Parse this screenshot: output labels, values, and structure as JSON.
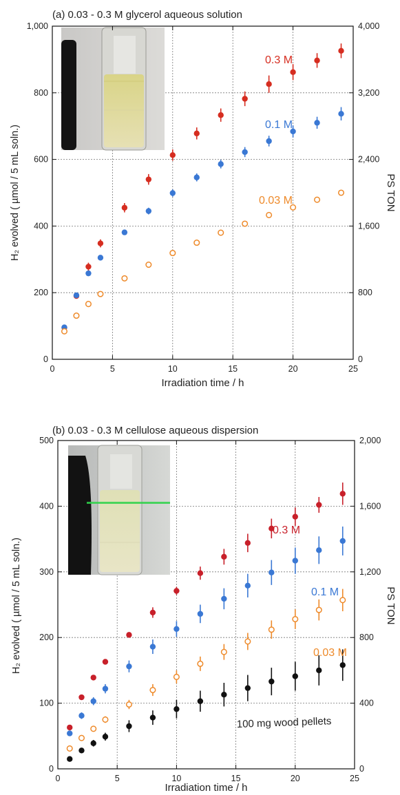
{
  "chart_data": [
    {
      "type": "scatter",
      "title": "(a) 0.03 - 0.3 M glycerol aqueous solution",
      "xlabel": "Irradiation time / h",
      "ylabel": "H₂ evolved ( µmol / 5 mL soln.)",
      "y2label": "PS TON",
      "xlim": [
        0,
        25
      ],
      "ylim": [
        0,
        1000
      ],
      "y2lim": [
        0,
        4000
      ],
      "xticks": [
        "0",
        "5",
        "10",
        "15",
        "20",
        "25"
      ],
      "yticks": [
        "0",
        "200",
        "400",
        "600",
        "800",
        "1,000"
      ],
      "y2ticks": [
        "0",
        "800",
        "1,600",
        "2,400",
        "3,200",
        "4,000"
      ],
      "grid": true,
      "inset": "photo of vial with glycerol solution",
      "series": [
        {
          "name": "0.3 M",
          "color": "#d62d20",
          "marker": "filled",
          "x": [
            1,
            2,
            3,
            4,
            6,
            8,
            10,
            12,
            14,
            16,
            18,
            20,
            22,
            24
          ],
          "y": [
            95,
            190,
            278,
            348,
            455,
            540,
            613,
            678,
            733,
            782,
            826,
            862,
            897,
            926
          ],
          "err": [
            5,
            8,
            12,
            12,
            14,
            16,
            17,
            18,
            20,
            22,
            26,
            24,
            22,
            22
          ]
        },
        {
          "name": "0.1 M",
          "color": "#3a78d4",
          "marker": "filled",
          "x": [
            1,
            2,
            3,
            4,
            6,
            8,
            10,
            12,
            14,
            16,
            18,
            20,
            22,
            24
          ],
          "y": [
            96,
            192,
            258,
            305,
            381,
            445,
            499,
            546,
            586,
            622,
            655,
            684,
            710,
            737
          ],
          "err": [
            4,
            6,
            8,
            7,
            8,
            10,
            11,
            12,
            13,
            15,
            16,
            18,
            18,
            20
          ]
        },
        {
          "name": "0.03 M",
          "color": "#ee8a2a",
          "marker": "open",
          "x": [
            1,
            2,
            3,
            4,
            6,
            8,
            10,
            12,
            14,
            16,
            18,
            20,
            22,
            24
          ],
          "y": [
            84,
            131,
            166,
            196,
            243,
            284,
            319,
            350,
            380,
            407,
            433,
            456,
            479,
            500
          ],
          "err": [
            3,
            3,
            3,
            4,
            4,
            4,
            5,
            5,
            5,
            5,
            6,
            6,
            6,
            6
          ]
        }
      ]
    },
    {
      "type": "scatter",
      "title": "(b) 0.03 - 0.3 M cellulose aqueous dispersion",
      "xlabel": "Irradiation time / h",
      "ylabel": "H₂ evolved ( µmol / 5 mL soln.)",
      "y2label": "PS TON",
      "xlim": [
        0,
        25
      ],
      "ylim": [
        0,
        500
      ],
      "y2lim": [
        0,
        2000
      ],
      "xticks": [
        "0",
        "5",
        "10",
        "15",
        "20",
        "25"
      ],
      "yticks": [
        "0",
        "100",
        "200",
        "300",
        "400",
        "500"
      ],
      "y2ticks": [
        "0",
        "400",
        "800",
        "1,200",
        "1,600",
        "2,000"
      ],
      "grid": true,
      "inset": "photo of vial with cellulose dispersion and green laser",
      "series": [
        {
          "name": "0.3 M",
          "color": "#c8202a",
          "marker": "filled",
          "x": [
            1,
            2,
            3,
            4,
            6,
            8,
            10,
            12,
            14,
            16,
            18,
            20,
            22,
            24
          ],
          "y": [
            63,
            109,
            139,
            163,
            204,
            238,
            271,
            298,
            323,
            344,
            366,
            384,
            402,
            419
          ],
          "err": [
            0,
            0,
            0,
            0,
            4,
            8,
            6,
            10,
            12,
            14,
            15,
            14,
            12,
            17
          ]
        },
        {
          "name": "0.1 M",
          "color": "#3a78d4",
          "marker": "filled",
          "x": [
            1,
            2,
            3,
            4,
            6,
            8,
            10,
            12,
            14,
            16,
            18,
            20,
            22,
            24
          ],
          "y": [
            54,
            81,
            103,
            122,
            156,
            186,
            213,
            236,
            259,
            279,
            299,
            317,
            333,
            347
          ],
          "err": [
            4,
            5,
            6,
            7,
            9,
            11,
            12,
            14,
            16,
            18,
            19,
            20,
            21,
            22
          ]
        },
        {
          "name": "0.03 M",
          "color": "#ee8a2a",
          "marker": "open",
          "x": [
            1,
            2,
            3,
            4,
            6,
            8,
            10,
            12,
            14,
            16,
            18,
            20,
            22,
            24
          ],
          "y": [
            31,
            47,
            61,
            75,
            98,
            120,
            140,
            160,
            178,
            194,
            212,
            228,
            242,
            257
          ],
          "err": [
            3,
            4,
            4,
            5,
            7,
            9,
            10,
            11,
            12,
            13,
            14,
            15,
            16,
            17
          ]
        },
        {
          "name": "100 mg wood pellets",
          "color": "#111111",
          "marker": "filled",
          "x": [
            1,
            2,
            3,
            4,
            6,
            8,
            10,
            12,
            14,
            16,
            18,
            20,
            22,
            24
          ],
          "y": [
            15,
            28,
            39,
            49,
            65,
            78,
            91,
            103,
            113,
            123,
            133,
            141,
            150,
            158
          ],
          "err": [
            3,
            4,
            5,
            6,
            9,
            11,
            14,
            16,
            18,
            20,
            21,
            22,
            23,
            24
          ]
        }
      ]
    }
  ]
}
